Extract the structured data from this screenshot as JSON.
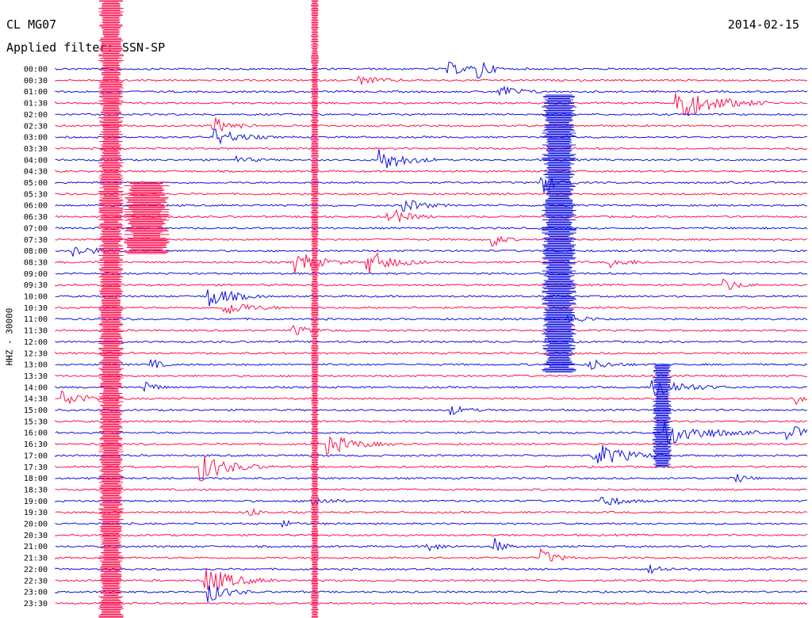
{
  "header": {
    "station": "CL MG07",
    "date": "2014-02-15",
    "filter_label": "Applied filter:",
    "filter_value": "SSN-SP",
    "channel": "HHZ - 30000"
  },
  "colors": {
    "even": "#1010e0",
    "odd": "#ff1050"
  },
  "chart_data": {
    "type": "line",
    "title": "CL MG07 2014-02-15",
    "ylabel": "HHZ - 30000",
    "tick_labels": [
      "00:00",
      "00:30",
      "01:00",
      "01:30",
      "02:00",
      "02:30",
      "03:00",
      "03:30",
      "04:00",
      "04:30",
      "05:00",
      "05:30",
      "06:00",
      "06:30",
      "07:00",
      "07:30",
      "08:00",
      "08:30",
      "09:00",
      "09:30",
      "10:00",
      "10:30",
      "11:00",
      "11:30",
      "12:00",
      "12:30",
      "13:00",
      "13:30",
      "14:00",
      "14:30",
      "15:00",
      "15:30",
      "16:00",
      "16:30",
      "17:00",
      "17:30",
      "18:00",
      "18:30",
      "19:00",
      "19:30",
      "20:00",
      "20:30",
      "21:00",
      "21:30",
      "22:00",
      "22:30",
      "23:00",
      "23:30"
    ],
    "traces_per_hour": 2,
    "minutes_per_trace": 30,
    "x_range_minutes": [
      0,
      30
    ],
    "series_colors": "alternating blue (even) / red (odd)",
    "grid": false
  }
}
